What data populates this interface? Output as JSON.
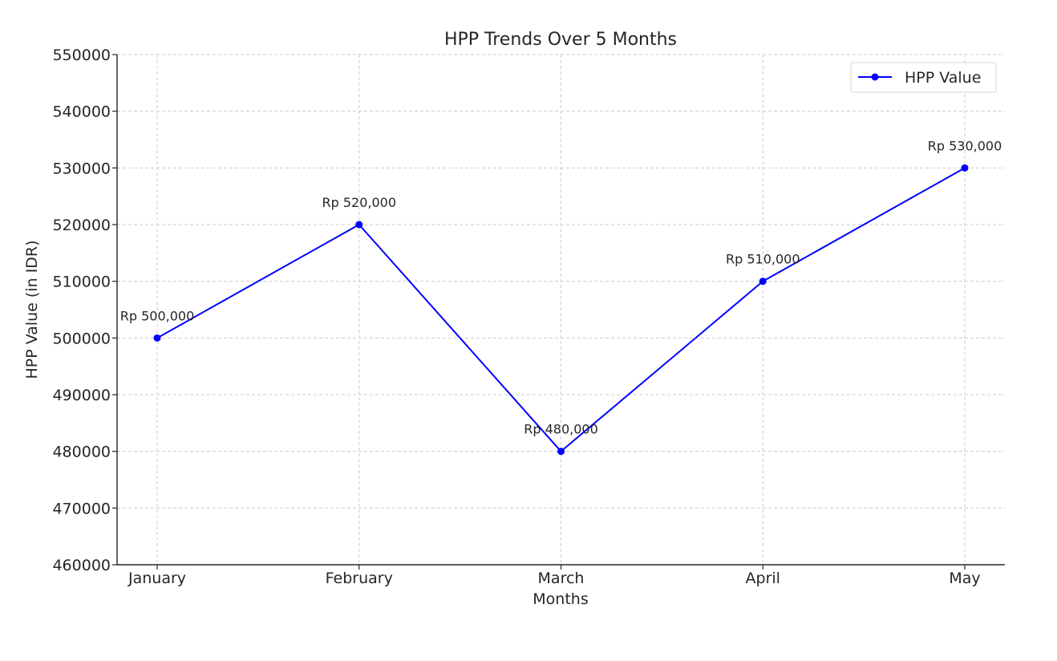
{
  "chart_data": {
    "type": "line",
    "title": "HPP Trends Over 5 Months",
    "xlabel": "Months",
    "ylabel": "HPP Value (in IDR)",
    "categories": [
      "January",
      "February",
      "March",
      "April",
      "May"
    ],
    "series": [
      {
        "name": "HPP Value",
        "values": [
          500000,
          520000,
          480000,
          510000,
          530000
        ],
        "labels": [
          "Rp 500,000",
          "Rp 520,000",
          "Rp 480,000",
          "Rp 510,000",
          "Rp 530,000"
        ],
        "color": "#0000ff",
        "marker": "circle"
      }
    ],
    "ylim": [
      460000,
      550000
    ],
    "yticks": [
      460000,
      470000,
      480000,
      490000,
      500000,
      510000,
      520000,
      530000,
      540000,
      550000
    ],
    "grid": true,
    "legend_position": "top-right"
  }
}
